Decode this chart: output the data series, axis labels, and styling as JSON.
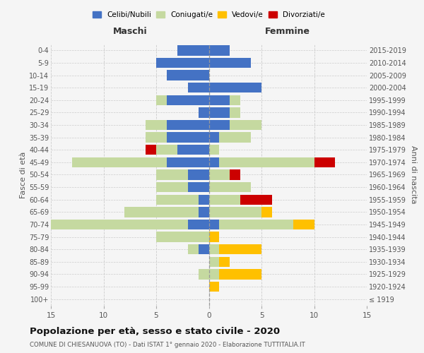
{
  "age_groups": [
    "0-4",
    "5-9",
    "10-14",
    "15-19",
    "20-24",
    "25-29",
    "30-34",
    "35-39",
    "40-44",
    "45-49",
    "50-54",
    "55-59",
    "60-64",
    "65-69",
    "70-74",
    "75-79",
    "80-84",
    "85-89",
    "90-94",
    "95-99",
    "100+"
  ],
  "birth_years": [
    "2015-2019",
    "2010-2014",
    "2005-2009",
    "2000-2004",
    "1995-1999",
    "1990-1994",
    "1985-1989",
    "1980-1984",
    "1975-1979",
    "1970-1974",
    "1965-1969",
    "1960-1964",
    "1955-1959",
    "1950-1954",
    "1945-1949",
    "1940-1944",
    "1935-1939",
    "1930-1934",
    "1925-1929",
    "1920-1924",
    "≤ 1919"
  ],
  "males": {
    "celibi": [
      3,
      5,
      4,
      2,
      4,
      1,
      4,
      4,
      3,
      4,
      2,
      2,
      1,
      1,
      2,
      0,
      1,
      0,
      0,
      0,
      0
    ],
    "coniugati": [
      0,
      0,
      0,
      0,
      1,
      0,
      2,
      2,
      2,
      9,
      3,
      3,
      4,
      7,
      13,
      5,
      1,
      0,
      1,
      0,
      0
    ],
    "vedovi": [
      0,
      0,
      0,
      0,
      0,
      0,
      0,
      0,
      0,
      0,
      0,
      0,
      0,
      0,
      0,
      0,
      0,
      0,
      0,
      0,
      0
    ],
    "divorziati": [
      0,
      0,
      0,
      0,
      0,
      0,
      0,
      0,
      1,
      0,
      0,
      0,
      0,
      0,
      0,
      0,
      0,
      0,
      0,
      0,
      0
    ]
  },
  "females": {
    "nubili": [
      2,
      4,
      0,
      5,
      2,
      2,
      2,
      1,
      0,
      1,
      0,
      0,
      0,
      0,
      1,
      0,
      0,
      0,
      0,
      0,
      0
    ],
    "coniugate": [
      0,
      0,
      0,
      0,
      1,
      1,
      3,
      3,
      1,
      9,
      2,
      4,
      3,
      5,
      7,
      0,
      1,
      1,
      1,
      0,
      0
    ],
    "vedove": [
      0,
      0,
      0,
      0,
      0,
      0,
      0,
      0,
      0,
      0,
      0,
      0,
      0,
      1,
      2,
      1,
      4,
      1,
      4,
      1,
      0
    ],
    "divorziate": [
      0,
      0,
      0,
      0,
      0,
      0,
      0,
      0,
      0,
      2,
      1,
      0,
      3,
      0,
      0,
      0,
      0,
      0,
      0,
      0,
      0
    ]
  },
  "colors": {
    "celibi": "#4472c4",
    "coniugati": "#c5d9a0",
    "vedovi": "#ffc000",
    "divorziati": "#cc0000"
  },
  "xlim": 15,
  "title": "Popolazione per età, sesso e stato civile - 2020",
  "subtitle": "COMUNE DI CHIESANUOVA (TO) - Dati ISTAT 1° gennaio 2020 - Elaborazione TUTTITALIA.IT",
  "ylabel_left": "Fasce di età",
  "ylabel_right": "Anni di nascita",
  "xlabel_left": "Maschi",
  "xlabel_right": "Femmine",
  "bg_color": "#f5f5f5",
  "grid_color": "#cccccc"
}
